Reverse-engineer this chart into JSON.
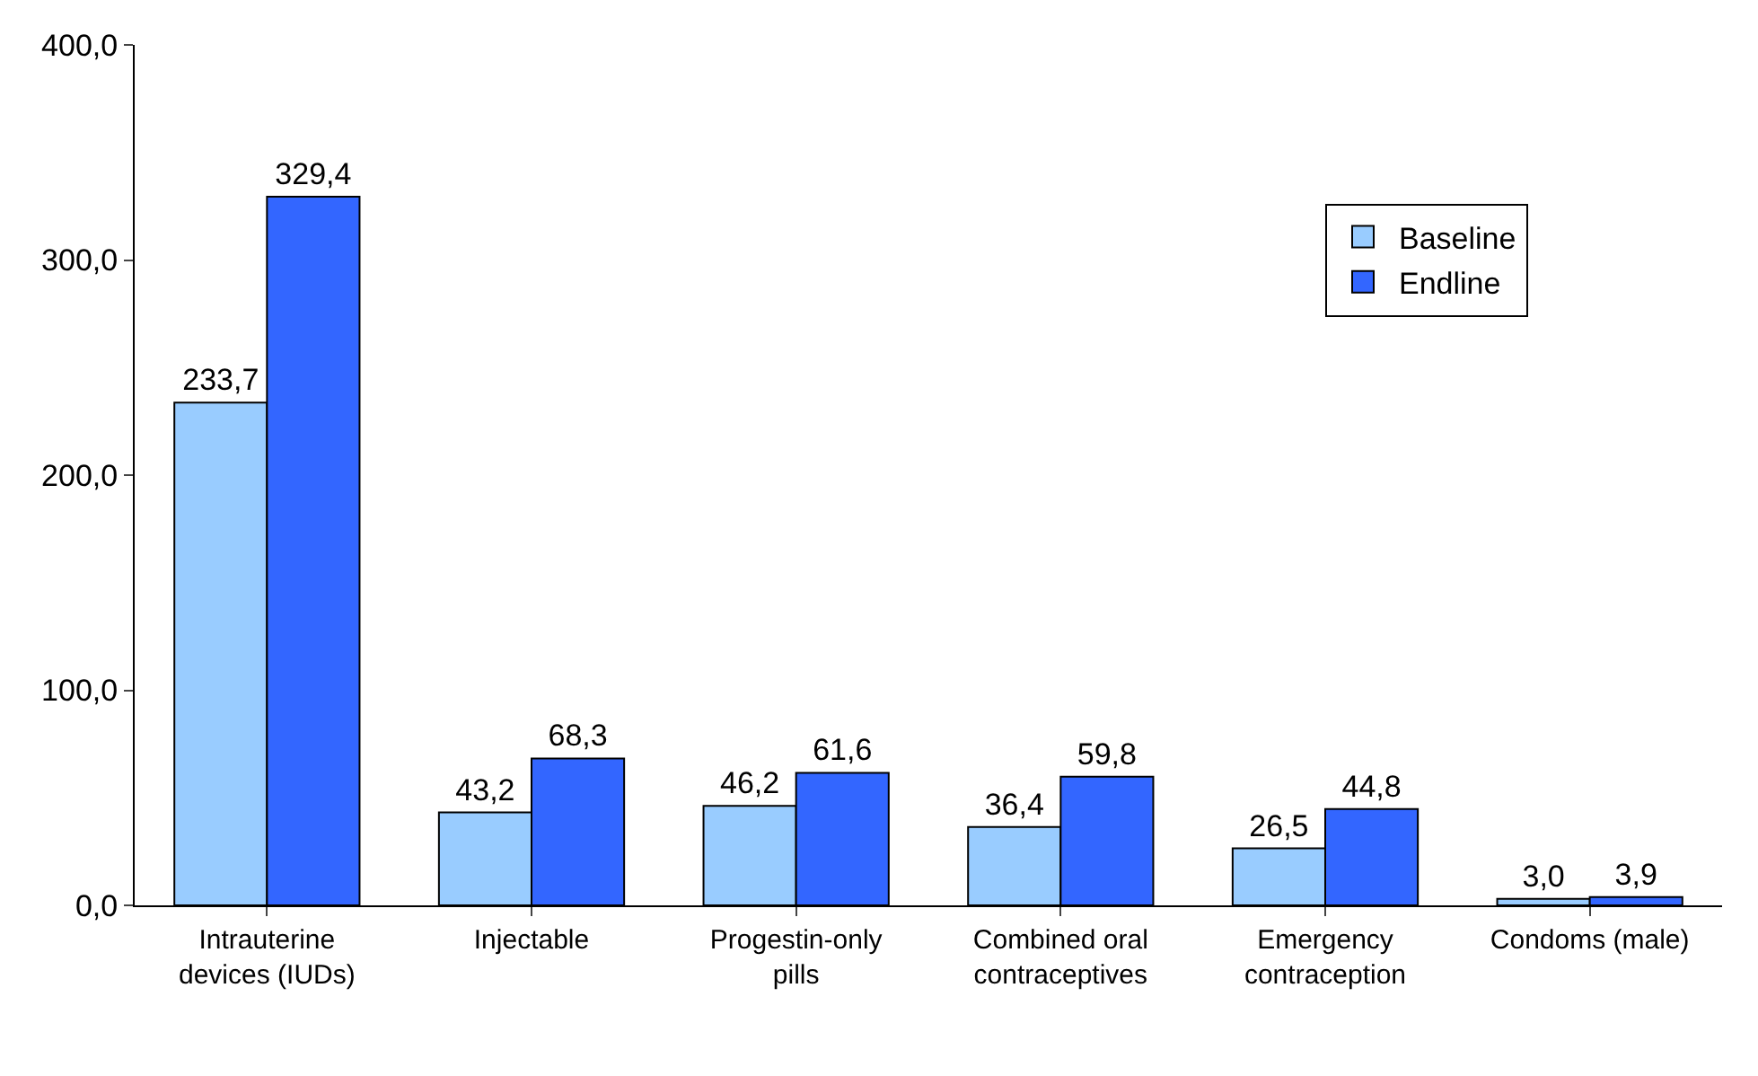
{
  "chart_data": {
    "type": "bar",
    "categories": [
      "Intrauterine devices (IUDs)",
      "Injectable",
      "Progestin-only pills",
      "Combined oral contraceptives",
      "Emergency contraception",
      "Condoms (male)"
    ],
    "series": [
      {
        "name": "Baseline",
        "color": "#99ccff",
        "values": [
          233.7,
          43.2,
          46.2,
          36.4,
          26.5,
          3.0
        ],
        "value_labels": [
          "233,7",
          "43,2",
          "46,2",
          "36,4",
          "26,5",
          "3,0"
        ]
      },
      {
        "name": "Endline",
        "color": "#3366ff",
        "values": [
          329.4,
          68.3,
          61.6,
          59.8,
          44.8,
          3.9
        ],
        "value_labels": [
          "329,4",
          "68,3",
          "61,6",
          "59,8",
          "44,8",
          "3,9"
        ]
      }
    ],
    "ylim": [
      0,
      400
    ],
    "yticks": [
      {
        "value": 0,
        "label": "0,0"
      },
      {
        "value": 100,
        "label": "100,0"
      },
      {
        "value": 200,
        "label": "200,0"
      },
      {
        "value": 300,
        "label": "300,0"
      },
      {
        "value": 400,
        "label": "400,0"
      }
    ],
    "grid": false,
    "legend": "right"
  }
}
